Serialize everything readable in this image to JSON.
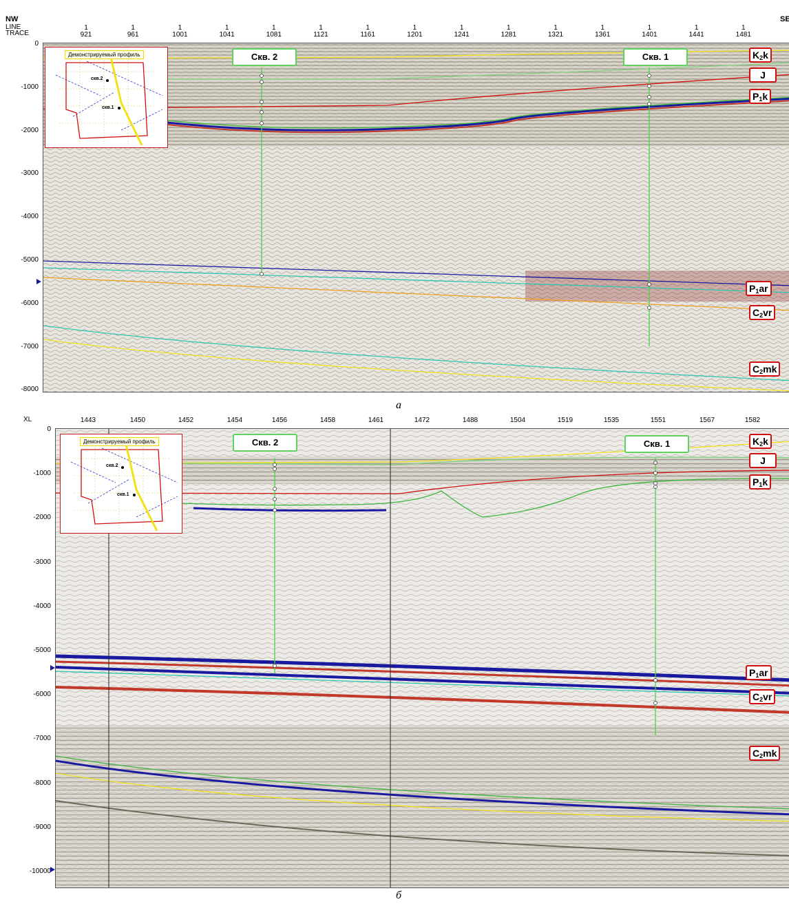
{
  "top": {
    "left_dir": "NW",
    "right_dir": "SE",
    "axis_title_1": "LINE",
    "axis_title_2": "TRACE",
    "line_no": "1",
    "traces": [
      "921",
      "961",
      "1001",
      "1041",
      "1081",
      "1121",
      "1161",
      "1201",
      "1241",
      "1281",
      "1321",
      "1361",
      "1401",
      "1441",
      "1481"
    ],
    "depths": [
      "0",
      "-1000",
      "-2000",
      "-3000",
      "-4000",
      "-5000",
      "-6000",
      "-7000",
      "-8000"
    ],
    "wells": [
      "Скв. 2",
      "Скв. 1"
    ],
    "horizons": [
      {
        "base": "K",
        "sub": "2",
        "rest": "k"
      },
      {
        "base": "J",
        "sub": "",
        "rest": ""
      },
      {
        "base": "P",
        "sub": "1",
        "rest": "k"
      },
      {
        "base": "P",
        "sub": "1",
        "rest": "ar"
      },
      {
        "base": "C",
        "sub": "2",
        "rest": "vr"
      },
      {
        "base": "C",
        "sub": "2",
        "rest": "mk"
      }
    ],
    "inset_title": "Демонстрируемый профиль",
    "inset_wells": [
      "скв.2",
      "скв.1"
    ],
    "caption": "а"
  },
  "bottom": {
    "axis_title": "XL",
    "ticks": [
      "1443",
      "1450",
      "1452",
      "1454",
      "1456",
      "1458",
      "1461",
      "1472",
      "1488",
      "1504",
      "1519",
      "1535",
      "1551",
      "1567",
      "1582"
    ],
    "depths": [
      "0",
      "-1000",
      "-2000",
      "-3000",
      "-4000",
      "-5000",
      "-6000",
      "-7000",
      "-8000",
      "-9000",
      "-10000"
    ],
    "wells": [
      "Скв. 2",
      "Скв. 1"
    ],
    "horizons": [
      {
        "base": "K",
        "sub": "2",
        "rest": "k"
      },
      {
        "base": "J",
        "sub": "",
        "rest": ""
      },
      {
        "base": "P",
        "sub": "1",
        "rest": "k"
      },
      {
        "base": "P",
        "sub": "1",
        "rest": "ar"
      },
      {
        "base": "C",
        "sub": "2",
        "rest": "vr"
      },
      {
        "base": "C",
        "sub": "2",
        "rest": "mk"
      }
    ],
    "inset_title": "Демонстрируемый профиль",
    "inset_wells": [
      "скв.2",
      "скв.1"
    ],
    "caption": "б"
  },
  "colors": {
    "well_green": "#5fd35f",
    "horizon_red": "#d01010",
    "yellow": "#f2e21a",
    "blue": "#1a1aa0",
    "cyan": "#2fc6b0",
    "orange": "#f0a020"
  }
}
